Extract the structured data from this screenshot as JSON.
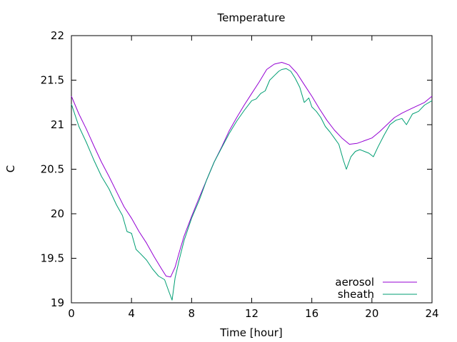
{
  "chart_data": {
    "type": "line",
    "title": "Temperature",
    "xlabel": "Time [hour]",
    "ylabel": "C",
    "xlim": [
      0,
      24
    ],
    "ylim": [
      19,
      22
    ],
    "xticks": [
      0,
      4,
      8,
      12,
      16,
      20,
      24
    ],
    "yticks": [
      19,
      19.5,
      20,
      20.5,
      21,
      21.5,
      22
    ],
    "xtick_labels": [
      "0",
      "4",
      "8",
      "12",
      "16",
      "20",
      "24"
    ],
    "ytick_labels": [
      "19",
      "19.5",
      "20",
      "20.5",
      "21",
      "21.5",
      "22"
    ],
    "grid": false,
    "legend_position": "bottom-right",
    "series": [
      {
        "name": "aerosol",
        "color": "#9400d3",
        "x": [
          0,
          0.5,
          1,
          1.5,
          2,
          2.5,
          3,
          3.5,
          4,
          4.5,
          5,
          5.5,
          6,
          6.3,
          6.6,
          6.9,
          7.2,
          7.5,
          8,
          8.5,
          9,
          9.5,
          10,
          10.5,
          11,
          11.5,
          12,
          12.5,
          13,
          13.5,
          14,
          14.5,
          15,
          15.5,
          16,
          16.5,
          17,
          17.5,
          18,
          18.5,
          19,
          19.5,
          20,
          20.5,
          21,
          21.5,
          22,
          22.5,
          23,
          23.5,
          24
        ],
        "y": [
          21.32,
          21.12,
          20.95,
          20.76,
          20.58,
          20.42,
          20.25,
          20.08,
          19.95,
          19.8,
          19.67,
          19.52,
          19.38,
          19.3,
          19.29,
          19.4,
          19.58,
          19.75,
          19.97,
          20.18,
          20.38,
          20.58,
          20.75,
          20.93,
          21.08,
          21.22,
          21.35,
          21.48,
          21.62,
          21.68,
          21.7,
          21.67,
          21.58,
          21.45,
          21.32,
          21.18,
          21.05,
          20.94,
          20.85,
          20.78,
          20.79,
          20.82,
          20.85,
          20.92,
          21.0,
          21.08,
          21.13,
          21.17,
          21.21,
          21.25,
          21.32
        ]
      },
      {
        "name": "sheath",
        "color": "#009e73",
        "x": [
          0,
          0.5,
          1,
          1.5,
          2,
          2.5,
          3,
          3.4,
          3.7,
          4,
          4.3,
          4.6,
          5,
          5.4,
          5.8,
          6.2,
          6.5,
          6.7,
          6.9,
          7.2,
          7.5,
          8,
          8.5,
          9,
          9.5,
          10,
          10.5,
          11,
          11.5,
          12,
          12.3,
          12.6,
          12.9,
          13.2,
          13.5,
          13.8,
          14,
          14.3,
          14.6,
          14.9,
          15.2,
          15.5,
          15.8,
          16,
          16.3,
          16.6,
          16.9,
          17.2,
          17.5,
          17.8,
          18.1,
          18.3,
          18.6,
          18.9,
          19.2,
          19.5,
          19.8,
          20.1,
          20.4,
          20.8,
          21.2,
          21.6,
          22,
          22.3,
          22.7,
          23.1,
          23.5,
          24
        ],
        "y": [
          21.23,
          20.98,
          20.8,
          20.6,
          20.42,
          20.28,
          20.1,
          19.98,
          19.8,
          19.78,
          19.6,
          19.55,
          19.48,
          19.38,
          19.3,
          19.26,
          19.12,
          19.03,
          19.28,
          19.5,
          19.7,
          19.95,
          20.15,
          20.38,
          20.58,
          20.74,
          20.9,
          21.04,
          21.16,
          21.27,
          21.29,
          21.35,
          21.38,
          21.5,
          21.55,
          21.6,
          21.62,
          21.63,
          21.6,
          21.52,
          21.42,
          21.25,
          21.3,
          21.2,
          21.15,
          21.08,
          20.98,
          20.92,
          20.85,
          20.78,
          20.6,
          20.5,
          20.64,
          20.7,
          20.72,
          20.7,
          20.68,
          20.64,
          20.75,
          20.88,
          21.0,
          21.05,
          21.07,
          21.0,
          21.12,
          21.15,
          21.22,
          21.27
        ]
      }
    ]
  }
}
